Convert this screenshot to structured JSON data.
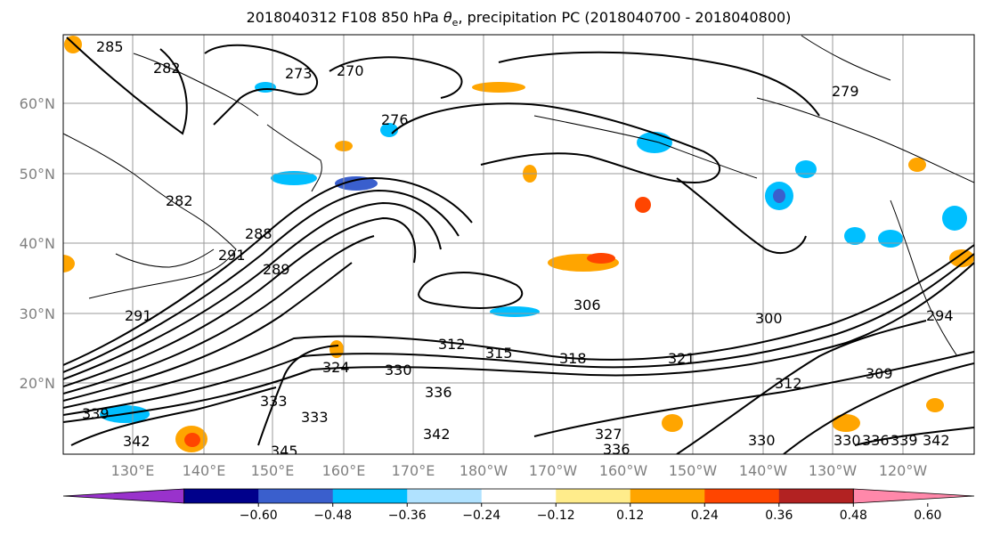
{
  "title": "2018040312 F108 850 hPa θe, precipitation PC (2018040700 - 2018040800)",
  "title_prefix": "2018040312 F108 850 hPa ",
  "title_theta": "θ",
  "title_sub": "e",
  "title_suffix": ", precipitation PC (2018040700 - 2018040800)",
  "lon_labels": [
    "130°E",
    "140°E",
    "150°E",
    "160°E",
    "170°E",
    "180°W",
    "170°W",
    "160°W",
    "150°W",
    "140°W",
    "130°W",
    "120°W"
  ],
  "lat_labels": [
    "60°N",
    "50°N",
    "40°N",
    "30°N",
    "20°N"
  ],
  "contour_labels": [
    "285",
    "282",
    "273",
    "270",
    "276",
    "279",
    "282",
    "288",
    "291",
    "289",
    "291",
    "294",
    "306",
    "300",
    "312",
    "315",
    "318",
    "321",
    "324",
    "330",
    "336",
    "333",
    "333",
    "339",
    "342",
    "345",
    "342",
    "327",
    "336",
    "330",
    "309",
    "312",
    "330",
    "336",
    "339",
    "342"
  ],
  "colorbar": {
    "ticks": [
      "−0.60",
      "−0.48",
      "−0.36",
      "−0.24",
      "−0.12",
      "0.12",
      "0.24",
      "0.36",
      "0.48",
      "0.60"
    ],
    "colors": [
      "#9932cc",
      "#00008b",
      "#3a5fcd",
      "#00bfff",
      "#b0e2ff",
      "#ffffff",
      "#ffec8b",
      "#ffa500",
      "#ff4500",
      "#b22222",
      "#ff88aa"
    ]
  },
  "colors": {
    "gridline": "#999999",
    "contour": "#000000",
    "positive_light": "#ffa500",
    "positive_strong": "#ff4500",
    "negative": "#00bfff",
    "negative_strong": "#3a5fcd"
  }
}
